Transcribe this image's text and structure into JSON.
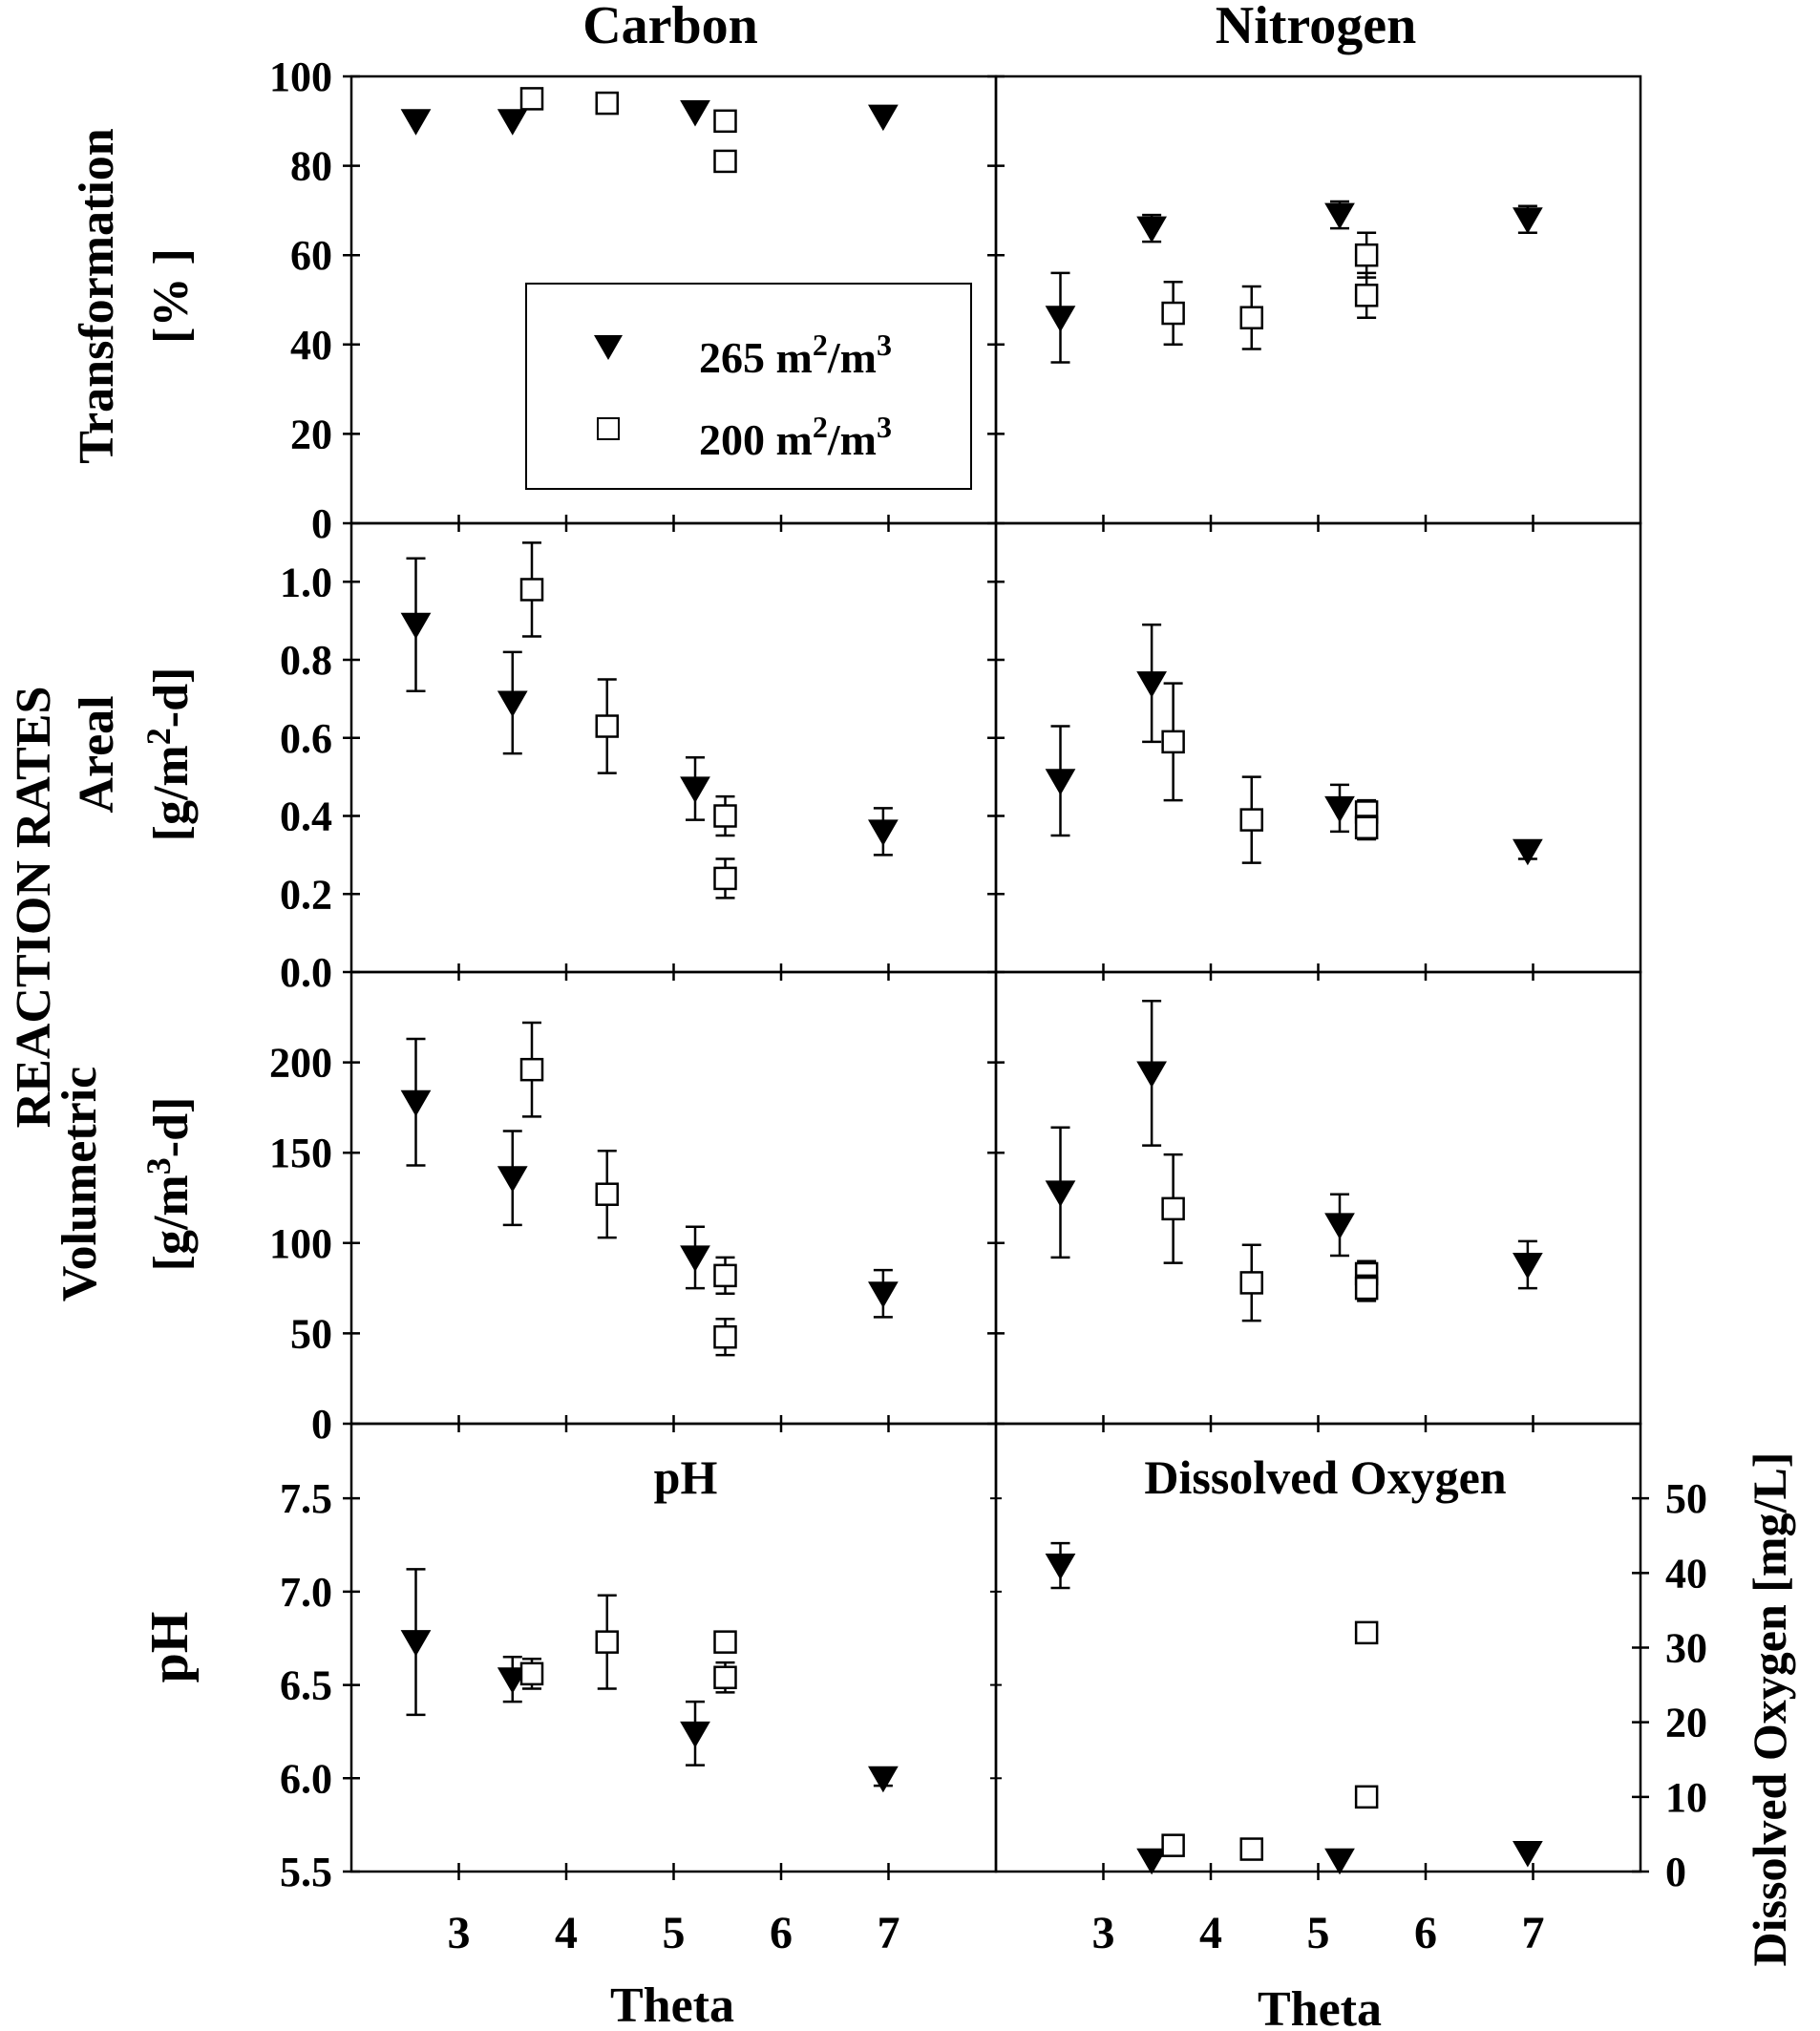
{
  "legend": {
    "entries": [
      {
        "symbol": "filled-triangle-down",
        "label": "265 m",
        "sup1": "2",
        "mid": "/m",
        "sup2": "3"
      },
      {
        "symbol": "open-square",
        "label": "200 m",
        "sup1": "2",
        "mid": "/m",
        "sup2": "3"
      }
    ]
  },
  "figure": {
    "column_titles": [
      "Carbon",
      "Nitrogen"
    ],
    "group_label": "REACTION RATES",
    "ylabels": {
      "transformation": [
        "Transformation",
        "[% ]"
      ],
      "areal": [
        "Areal",
        "[g/m",
        "2",
        "-d]"
      ],
      "volumetric": [
        "Volumetric",
        "[g/m",
        "3",
        "-d]"
      ],
      "ph": "pH",
      "do_right": "Dissolved Oxygen [mg/L]"
    },
    "xlabel": "Theta",
    "panel_titles": {
      "ph": "pH",
      "do": "Dissolved Oxygen"
    }
  },
  "chart_data": [
    {
      "id": "carbon-transformation",
      "type": "scatter",
      "title": "Carbon",
      "xlabel": "",
      "ylabel": "Transformation [% ]",
      "xlim": [
        2.0,
        8.0
      ],
      "ylim": [
        0,
        100
      ],
      "xticks": [
        3,
        4,
        5,
        6,
        7
      ],
      "show_xtick_labels": false,
      "yticks": [
        0,
        20,
        40,
        60,
        80,
        100
      ],
      "ytick_labels": [
        "0",
        "20",
        "40",
        "60",
        "80",
        "100"
      ],
      "series": [
        {
          "name": "265 m2/m3",
          "marker": "triangle-down-filled",
          "points": [
            {
              "x": 2.6,
              "y": 90
            },
            {
              "x": 3.5,
              "y": 90
            },
            {
              "x": 5.2,
              "y": 92
            },
            {
              "x": 6.95,
              "y": 91
            }
          ]
        },
        {
          "name": "200 m2/m3",
          "marker": "square-open",
          "points": [
            {
              "x": 3.68,
              "y": 95
            },
            {
              "x": 4.38,
              "y": 94
            },
            {
              "x": 5.48,
              "y": 90
            },
            {
              "x": 5.48,
              "y": 81
            }
          ]
        }
      ]
    },
    {
      "id": "nitrogen-transformation",
      "type": "scatter",
      "title": "Nitrogen",
      "xlim": [
        2.0,
        8.0
      ],
      "ylim": [
        0,
        100
      ],
      "xticks": [
        3,
        4,
        5,
        6,
        7
      ],
      "show_xtick_labels": false,
      "yticks": [
        0,
        20,
        40,
        60,
        80,
        100
      ],
      "ytick_labels": [],
      "series": [
        {
          "name": "265 m2/m3",
          "marker": "triangle-down-filled",
          "points": [
            {
              "x": 2.6,
              "y": 46,
              "err": [
                10,
                10
              ]
            },
            {
              "x": 3.45,
              "y": 66,
              "err": [
                3,
                3
              ]
            },
            {
              "x": 5.2,
              "y": 69,
              "err": [
                3,
                3
              ]
            },
            {
              "x": 6.95,
              "y": 68,
              "err": [
                3,
                3
              ]
            }
          ]
        },
        {
          "name": "200 m2/m3",
          "marker": "square-open",
          "points": [
            {
              "x": 3.65,
              "y": 47,
              "err": [
                7,
                7
              ]
            },
            {
              "x": 4.38,
              "y": 46,
              "err": [
                7,
                7
              ]
            },
            {
              "x": 5.45,
              "y": 51,
              "err": [
                5,
                5
              ]
            },
            {
              "x": 5.45,
              "y": 60,
              "err": [
                5,
                5
              ]
            }
          ]
        }
      ]
    },
    {
      "id": "carbon-areal",
      "type": "scatter",
      "xlim": [
        2.0,
        8.0
      ],
      "ylim": [
        0,
        1.15
      ],
      "xticks": [
        3,
        4,
        5,
        6,
        7
      ],
      "show_xtick_labels": false,
      "yticks": [
        0,
        0.2,
        0.4,
        0.6,
        0.8,
        1.0
      ],
      "ytick_labels": [
        "0.0",
        "0.2",
        "0.4",
        "0.6",
        "0.8",
        "1.0"
      ],
      "series": [
        {
          "name": "265 m2/m3",
          "marker": "triangle-down-filled",
          "points": [
            {
              "x": 2.6,
              "y": 0.89,
              "err": [
                0.17,
                0.17
              ]
            },
            {
              "x": 3.5,
              "y": 0.69,
              "err": [
                0.13,
                0.13
              ]
            },
            {
              "x": 5.2,
              "y": 0.47,
              "err": [
                0.08,
                0.08
              ]
            },
            {
              "x": 6.95,
              "y": 0.36,
              "err": [
                0.06,
                0.06
              ]
            }
          ]
        },
        {
          "name": "200 m2/m3",
          "marker": "square-open",
          "points": [
            {
              "x": 3.68,
              "y": 0.98,
              "err": [
                0.12,
                0.12
              ]
            },
            {
              "x": 4.38,
              "y": 0.63,
              "err": [
                0.12,
                0.12
              ]
            },
            {
              "x": 5.48,
              "y": 0.4,
              "err": [
                0.05,
                0.05
              ]
            },
            {
              "x": 5.48,
              "y": 0.24,
              "err": [
                0.05,
                0.05
              ]
            }
          ]
        }
      ]
    },
    {
      "id": "nitrogen-areal",
      "type": "scatter",
      "xlim": [
        2.0,
        8.0
      ],
      "ylim": [
        0,
        1.15
      ],
      "xticks": [
        3,
        4,
        5,
        6,
        7
      ],
      "show_xtick_labels": false,
      "yticks": [
        0,
        0.2,
        0.4,
        0.6,
        0.8,
        1.0
      ],
      "ytick_labels": [],
      "series": [
        {
          "name": "265 m2/m3",
          "marker": "triangle-down-filled",
          "points": [
            {
              "x": 2.6,
              "y": 0.49,
              "err": [
                0.14,
                0.14
              ]
            },
            {
              "x": 3.45,
              "y": 0.74,
              "err": [
                0.15,
                0.15
              ]
            },
            {
              "x": 5.2,
              "y": 0.42,
              "err": [
                0.06,
                0.06
              ]
            },
            {
              "x": 6.95,
              "y": 0.31,
              "err": [
                0.02,
                0.02
              ]
            }
          ]
        },
        {
          "name": "200 m2/m3",
          "marker": "square-open",
          "points": [
            {
              "x": 3.65,
              "y": 0.59,
              "err": [
                0.15,
                0.15
              ]
            },
            {
              "x": 4.38,
              "y": 0.39,
              "err": [
                0.11,
                0.11
              ]
            },
            {
              "x": 5.45,
              "y": 0.41,
              "err": [
                0.03,
                0.03
              ]
            },
            {
              "x": 5.45,
              "y": 0.37,
              "err": [
                0.03,
                0.03
              ]
            }
          ]
        }
      ]
    },
    {
      "id": "carbon-volumetric",
      "type": "scatter",
      "xlim": [
        2.0,
        8.0
      ],
      "ylim": [
        0,
        250
      ],
      "xticks": [
        3,
        4,
        5,
        6,
        7
      ],
      "show_xtick_labels": false,
      "yticks": [
        0,
        50,
        100,
        150,
        200
      ],
      "ytick_labels": [
        "0",
        "50",
        "100",
        "150",
        "200"
      ],
      "series": [
        {
          "name": "265 m2/m3",
          "marker": "triangle-down-filled",
          "points": [
            {
              "x": 2.6,
              "y": 178,
              "err": [
                35,
                35
              ]
            },
            {
              "x": 3.5,
              "y": 136,
              "err": [
                26,
                26
              ]
            },
            {
              "x": 5.2,
              "y": 92,
              "err": [
                17,
                17
              ]
            },
            {
              "x": 6.95,
              "y": 72,
              "err": [
                13,
                13
              ]
            }
          ]
        },
        {
          "name": "200 m2/m3",
          "marker": "square-open",
          "points": [
            {
              "x": 3.68,
              "y": 196,
              "err": [
                26,
                26
              ]
            },
            {
              "x": 4.38,
              "y": 127,
              "err": [
                24,
                24
              ]
            },
            {
              "x": 5.48,
              "y": 82,
              "err": [
                10,
                10
              ]
            },
            {
              "x": 5.48,
              "y": 48,
              "err": [
                10,
                10
              ]
            }
          ]
        }
      ]
    },
    {
      "id": "nitrogen-volumetric",
      "type": "scatter",
      "xlim": [
        2.0,
        8.0
      ],
      "ylim": [
        0,
        250
      ],
      "xticks": [
        3,
        4,
        5,
        6,
        7
      ],
      "show_xtick_labels": false,
      "yticks": [
        0,
        50,
        100,
        150,
        200
      ],
      "ytick_labels": [],
      "series": [
        {
          "name": "265 m2/m3",
          "marker": "triangle-down-filled",
          "points": [
            {
              "x": 2.6,
              "y": 128,
              "err": [
                36,
                36
              ]
            },
            {
              "x": 3.45,
              "y": 194,
              "err": [
                40,
                40
              ]
            },
            {
              "x": 5.2,
              "y": 110,
              "err": [
                17,
                17
              ]
            },
            {
              "x": 6.95,
              "y": 88,
              "err": [
                13,
                13
              ]
            }
          ]
        },
        {
          "name": "200 m2/m3",
          "marker": "square-open",
          "points": [
            {
              "x": 3.65,
              "y": 119,
              "err": [
                30,
                30
              ]
            },
            {
              "x": 4.38,
              "y": 78,
              "err": [
                21,
                21
              ]
            },
            {
              "x": 5.45,
              "y": 83,
              "err": [
                7,
                7
              ]
            },
            {
              "x": 5.45,
              "y": 75,
              "err": [
                7,
                7
              ]
            }
          ]
        }
      ]
    },
    {
      "id": "carbon-ph",
      "type": "scatter",
      "title": "pH",
      "xlabel": "Theta",
      "ylabel": "pH",
      "xlim": [
        2.0,
        8.0
      ],
      "ylim": [
        5.5,
        7.9
      ],
      "xticks": [
        3,
        4,
        5,
        6,
        7
      ],
      "show_xtick_labels": true,
      "xtick_labels": [
        "3",
        "4",
        "5",
        "6",
        "7"
      ],
      "yticks": [
        5.5,
        6.0,
        6.5,
        7.0,
        7.5
      ],
      "ytick_labels": [
        "5.5",
        "6.0",
        "6.5",
        "7.0",
        "7.5"
      ],
      "series": [
        {
          "name": "265 m2/m3",
          "marker": "triangle-down-filled",
          "points": [
            {
              "x": 2.6,
              "y": 6.73,
              "err": [
                0.39,
                0.39
              ]
            },
            {
              "x": 3.5,
              "y": 6.53,
              "err": [
                0.12,
                0.12
              ]
            },
            {
              "x": 5.2,
              "y": 6.24,
              "err": [
                0.17,
                0.17
              ]
            },
            {
              "x": 6.95,
              "y": 6.0,
              "err": [
                0.04,
                0.04
              ]
            }
          ]
        },
        {
          "name": "200 m2/m3",
          "marker": "square-open",
          "points": [
            {
              "x": 3.68,
              "y": 6.56,
              "err": [
                0.08,
                0.08
              ]
            },
            {
              "x": 4.38,
              "y": 6.73,
              "err": [
                0.25,
                0.25
              ]
            },
            {
              "x": 5.48,
              "y": 6.73,
              "err": [
                0,
                0
              ]
            },
            {
              "x": 5.48,
              "y": 6.54,
              "err": [
                0.08,
                0.08
              ]
            }
          ]
        }
      ]
    },
    {
      "id": "nitrogen-dissolved-oxygen",
      "type": "scatter",
      "title": "Dissolved Oxygen",
      "xlabel": "Theta",
      "ylabel": "Dissolved Oxygen [mg/L]",
      "yaxis_side": "right",
      "xlim": [
        2.0,
        8.0
      ],
      "ylim": [
        0,
        60
      ],
      "xticks": [
        3,
        4,
        5,
        6,
        7
      ],
      "show_xtick_labels": true,
      "xtick_labels": [
        "3",
        "4",
        "5",
        "6",
        "7"
      ],
      "yticks": [
        0,
        10,
        20,
        30,
        40,
        50
      ],
      "ytick_labels": [
        "0",
        "10",
        "20",
        "30",
        "40",
        "50"
      ],
      "series": [
        {
          "name": "265 m2/m3",
          "marker": "triangle-down-filled",
          "points": [
            {
              "x": 2.6,
              "y": 41,
              "err": [
                3,
                3
              ]
            },
            {
              "x": 3.45,
              "y": 1.5
            },
            {
              "x": 5.2,
              "y": 1.5
            },
            {
              "x": 6.95,
              "y": 2.5
            }
          ]
        },
        {
          "name": "200 m2/m3",
          "marker": "square-open",
          "points": [
            {
              "x": 3.65,
              "y": 3.5
            },
            {
              "x": 4.38,
              "y": 3
            },
            {
              "x": 5.45,
              "y": 32
            },
            {
              "x": 5.45,
              "y": 10
            }
          ]
        }
      ]
    }
  ]
}
